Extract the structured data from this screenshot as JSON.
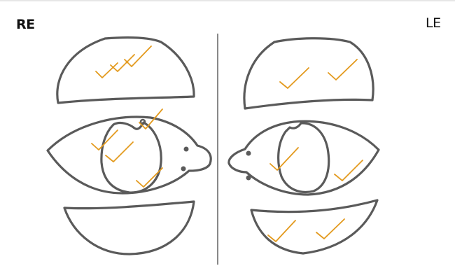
{
  "labels": {
    "right_eye": "RE",
    "left_eye": "LE"
  },
  "colors": {
    "outline": "#5a5a5a",
    "tick_mark": "#e39a1e",
    "background": "#ffffff"
  },
  "structures": {
    "right_eye": [
      "upper-lid",
      "eye",
      "iris",
      "lower-lid"
    ],
    "left_eye": [
      "upper-lid",
      "eye",
      "iris",
      "lower-lid"
    ]
  },
  "icons": [
    "check-mark-icon"
  ]
}
